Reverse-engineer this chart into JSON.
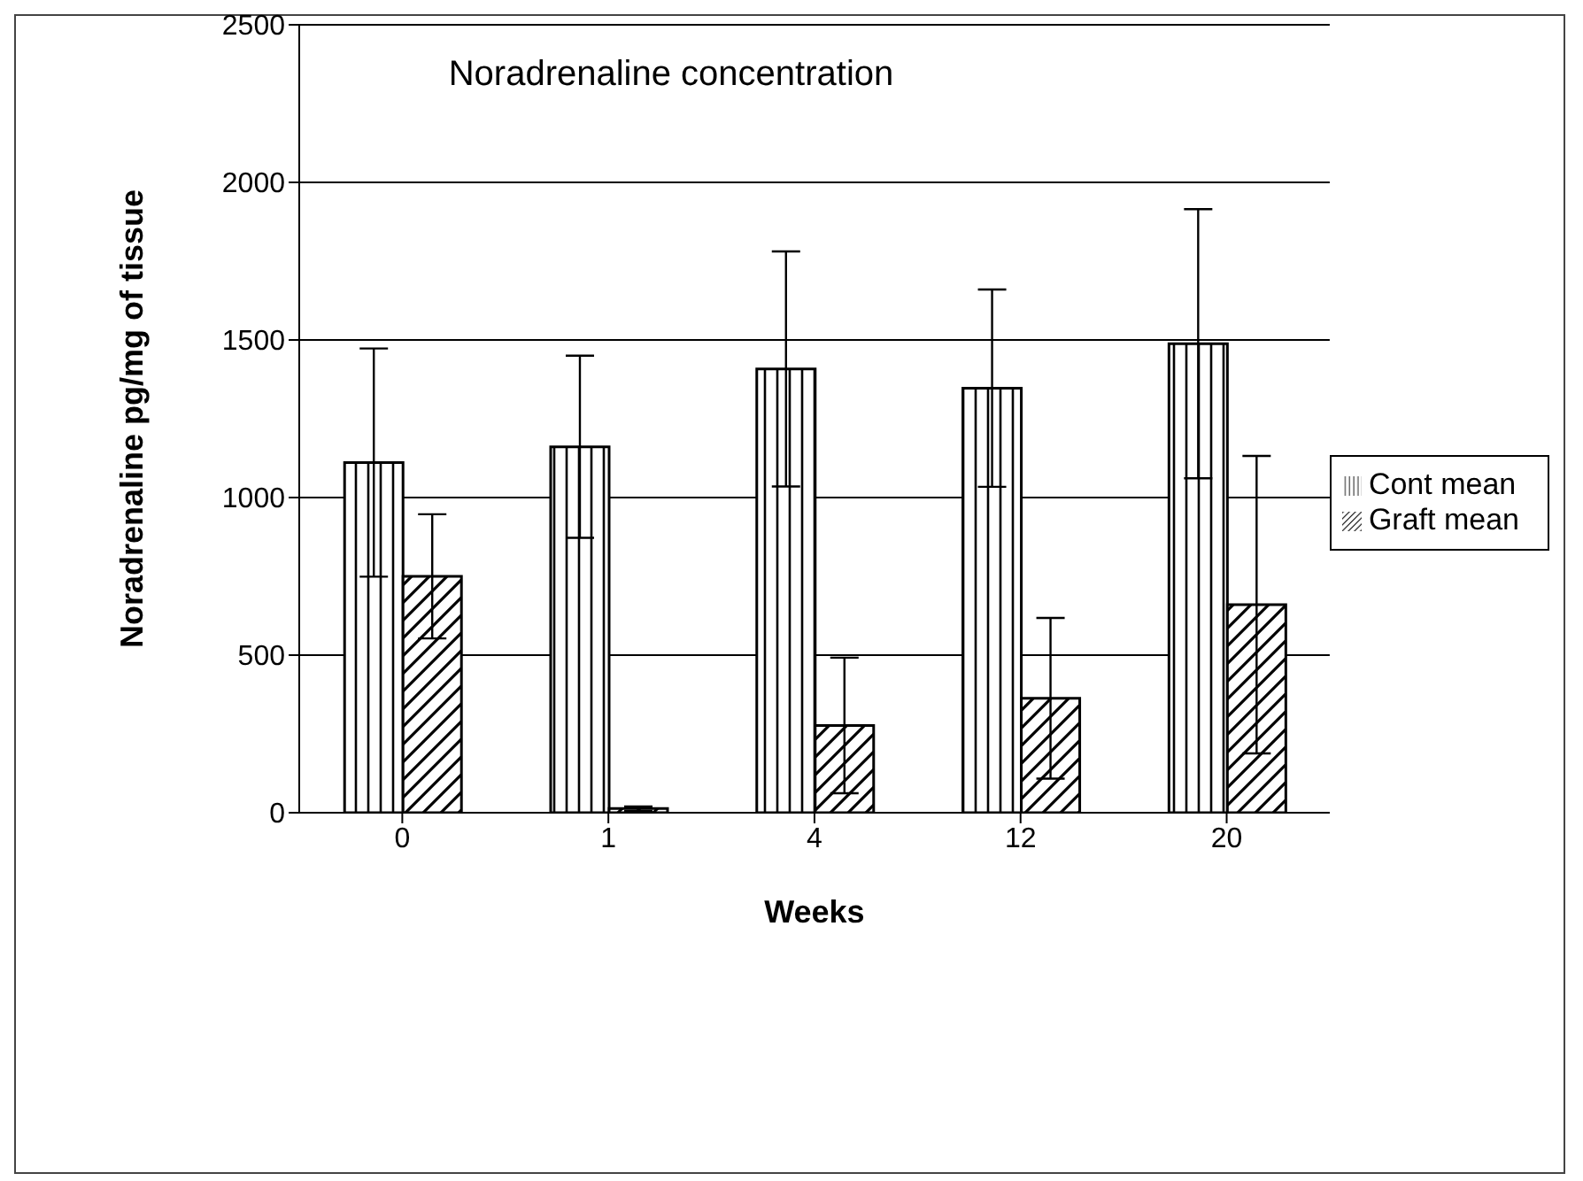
{
  "chart_data": {
    "type": "bar",
    "title": "Noradrenaline concentration",
    "xlabel": "Weeks",
    "ylabel": "Noradrenaline pg/mg of tissue",
    "categories": [
      "0",
      "1",
      "4",
      "12",
      "20"
    ],
    "series": [
      {
        "name": "Cont mean",
        "color": "#000000",
        "values": [
          1111,
          1161,
          1408,
          1347,
          1488
        ],
        "errors": [
          362,
          289,
          373,
          313,
          427
        ]
      },
      {
        "name": "Graft mean",
        "color": "#000000",
        "values": [
          750,
          13,
          277,
          363,
          660
        ],
        "errors": [
          197,
          7,
          215,
          255,
          472
        ]
      }
    ],
    "ylim": [
      0,
      2500
    ],
    "yticks": [
      0,
      500,
      1000,
      1500,
      2000,
      2500
    ],
    "grid": "y",
    "legend": "right"
  }
}
